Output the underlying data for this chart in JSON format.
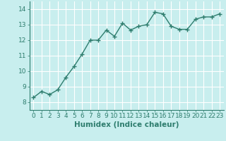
{
  "x": [
    0,
    1,
    2,
    3,
    4,
    5,
    6,
    7,
    8,
    9,
    10,
    11,
    12,
    13,
    14,
    15,
    16,
    17,
    18,
    19,
    20,
    21,
    22,
    23
  ],
  "y": [
    8.3,
    8.7,
    8.5,
    8.8,
    9.6,
    10.3,
    11.1,
    12.0,
    12.0,
    12.65,
    12.25,
    13.1,
    12.65,
    12.9,
    13.0,
    13.8,
    13.7,
    12.9,
    12.7,
    12.7,
    13.35,
    13.5,
    13.5,
    13.7
  ],
  "line_color": "#2e7d6e",
  "marker": "+",
  "bg_color": "#c8eeee",
  "grid_color": "#b0dddd",
  "xlabel": "Humidex (Indice chaleur)",
  "ylim": [
    7.5,
    14.5
  ],
  "xlim": [
    -0.5,
    23.5
  ],
  "yticks": [
    8,
    9,
    10,
    11,
    12,
    13,
    14
  ],
  "xticks": [
    0,
    1,
    2,
    3,
    4,
    5,
    6,
    7,
    8,
    9,
    10,
    11,
    12,
    13,
    14,
    15,
    16,
    17,
    18,
    19,
    20,
    21,
    22,
    23
  ],
  "xlabel_fontsize": 7.5,
  "tick_fontsize": 6.5,
  "line_width": 1.0,
  "marker_size": 4,
  "marker_edge_width": 1.0
}
